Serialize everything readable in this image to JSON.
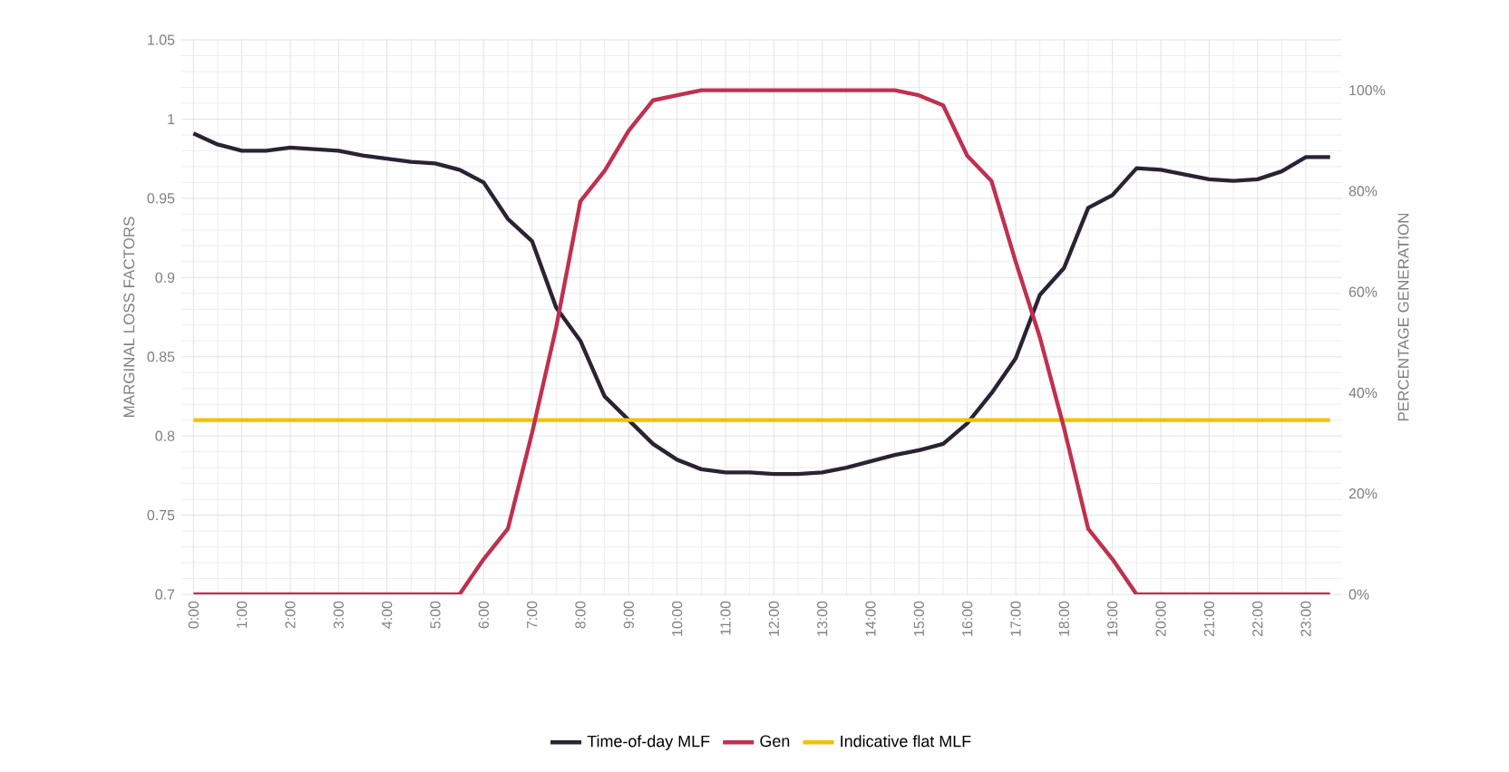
{
  "chart_data": {
    "type": "line",
    "ylabel": "MARGINAL LOSS FACTORS",
    "y2label": "PERCENTAGE GENERATION",
    "x": [
      0,
      0.5,
      1,
      1.5,
      2,
      2.5,
      3,
      3.5,
      4,
      4.5,
      5,
      5.5,
      6,
      6.5,
      7,
      7.5,
      8,
      8.5,
      9,
      9.5,
      10,
      10.5,
      11,
      11.5,
      12,
      12.5,
      13,
      13.5,
      14,
      14.5,
      15,
      15.5,
      16,
      16.5,
      17,
      17.5,
      18,
      18.5,
      19,
      19.5,
      20,
      20.5,
      21,
      21.5,
      22,
      22.5,
      23,
      23.5
    ],
    "series": [
      {
        "name": "Time-of-day MLF",
        "color": "#2b2233",
        "values": [
          0.991,
          0.984,
          0.98,
          0.98,
          0.982,
          0.981,
          0.98,
          0.977,
          0.975,
          0.973,
          0.972,
          0.968,
          0.96,
          0.937,
          0.923,
          0.881,
          0.86,
          0.825,
          0.81,
          0.795,
          0.785,
          0.779,
          0.777,
          0.777,
          0.776,
          0.776,
          0.777,
          0.78,
          0.784,
          0.788,
          0.791,
          0.795,
          0.808,
          0.827,
          0.849,
          0.889,
          0.906,
          0.944,
          0.952,
          0.969,
          0.968,
          0.965,
          0.962,
          0.961,
          0.962,
          0.967,
          0.976,
          0.976
        ]
      },
      {
        "name": "Gen",
        "color": "#c0304f",
        "axis": "y2",
        "values": [
          0,
          0,
          0,
          0,
          0,
          0,
          0,
          0,
          0,
          0,
          0,
          0,
          7,
          13,
          32,
          53,
          78,
          84,
          92,
          98,
          99,
          100,
          100,
          100,
          100,
          100,
          100,
          100,
          100,
          100,
          99,
          97,
          87,
          82,
          66,
          51,
          33,
          13,
          7,
          0,
          0,
          0,
          0,
          0,
          0,
          0,
          0,
          0
        ]
      },
      {
        "name": "Indicative flat MLF",
        "color": "#f2c200",
        "values": [
          0.81,
          0.81,
          0.81,
          0.81,
          0.81,
          0.81,
          0.81,
          0.81,
          0.81,
          0.81,
          0.81,
          0.81,
          0.81,
          0.81,
          0.81,
          0.81,
          0.81,
          0.81,
          0.81,
          0.81,
          0.81,
          0.81,
          0.81,
          0.81,
          0.81,
          0.81,
          0.81,
          0.81,
          0.81,
          0.81,
          0.81,
          0.81,
          0.81,
          0.81,
          0.81,
          0.81,
          0.81,
          0.81,
          0.81,
          0.81,
          0.81,
          0.81,
          0.81,
          0.81,
          0.81,
          0.81,
          0.81,
          0.81
        ]
      }
    ],
    "xlim": [
      -0.25,
      23.75
    ],
    "xticks": [
      {
        "value": 0,
        "label": "0:00"
      },
      {
        "value": 1,
        "label": "1:00"
      },
      {
        "value": 2,
        "label": "2:00"
      },
      {
        "value": 3,
        "label": "3:00"
      },
      {
        "value": 4,
        "label": "4:00"
      },
      {
        "value": 5,
        "label": "5:00"
      },
      {
        "value": 6,
        "label": "6:00"
      },
      {
        "value": 7,
        "label": "7:00"
      },
      {
        "value": 8,
        "label": "8:00"
      },
      {
        "value": 9,
        "label": "9:00"
      },
      {
        "value": 10,
        "label": "10:00"
      },
      {
        "value": 11,
        "label": "11:00"
      },
      {
        "value": 12,
        "label": "12:00"
      },
      {
        "value": 13,
        "label": "13:00"
      },
      {
        "value": 14,
        "label": "14:00"
      },
      {
        "value": 15,
        "label": "15:00"
      },
      {
        "value": 16,
        "label": "16:00"
      },
      {
        "value": 17,
        "label": "17:00"
      },
      {
        "value": 18,
        "label": "18:00"
      },
      {
        "value": 19,
        "label": "19:00"
      },
      {
        "value": 20,
        "label": "20:00"
      },
      {
        "value": 21,
        "label": "21:00"
      },
      {
        "value": 22,
        "label": "22:00"
      },
      {
        "value": 23,
        "label": "23:00"
      }
    ],
    "ylim": [
      0.7,
      1.05
    ],
    "yticks": [
      0.7,
      0.75,
      0.8,
      0.85,
      0.9,
      0.95,
      1,
      1.05
    ],
    "y2lim": [
      0,
      110
    ],
    "y2ticks": [
      {
        "value": 0,
        "label": "0%"
      },
      {
        "value": 20,
        "label": "20%"
      },
      {
        "value": 40,
        "label": "40%"
      },
      {
        "value": 60,
        "label": "60%"
      },
      {
        "value": 80,
        "label": "80%"
      },
      {
        "value": 100,
        "label": "100%"
      }
    ],
    "grid": true,
    "legend": "bottom",
    "marker": "none",
    "line_style": "solid"
  }
}
